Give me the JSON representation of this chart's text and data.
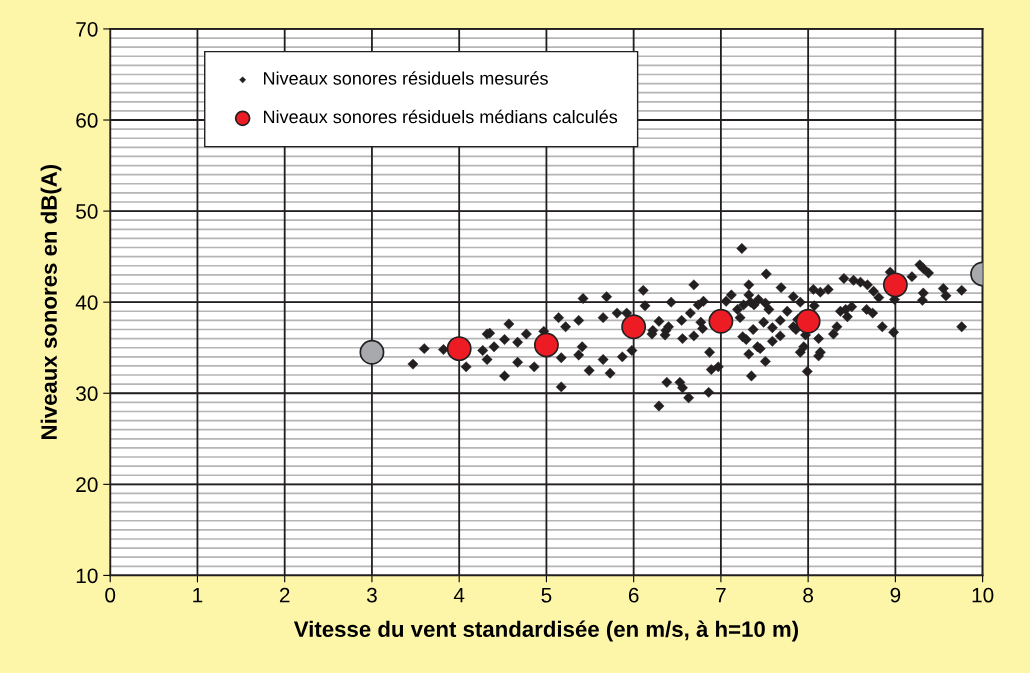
{
  "chart_data": {
    "type": "scatter",
    "xlabel": "Vitesse du vent standardisée (en m/s, à h=10 m)",
    "ylabel": "Niveaux sonores en dB(A)",
    "xlim": [
      0,
      10
    ],
    "ylim": [
      10,
      70
    ],
    "xticks": [
      0,
      1,
      2,
      3,
      4,
      5,
      6,
      7,
      8,
      9,
      10
    ],
    "yticks": [
      10,
      20,
      30,
      40,
      50,
      60,
      70
    ],
    "grid": true,
    "legend": "top left",
    "series": [
      {
        "name": "Niveaux sonores résiduels mesurés",
        "color": "#231f20",
        "marker": "diamond",
        "x": [
          3.47,
          3.6,
          3.82,
          4.08,
          4.27,
          4.32,
          4.35,
          4.4,
          4.32,
          4.52,
          4.52,
          4.57,
          4.67,
          4.67,
          4.86,
          4.77,
          4.97,
          5.14,
          5.22,
          5.17,
          5.17,
          5.37,
          5.42,
          5.37,
          5.41,
          5.49,
          5.69,
          5.65,
          5.73,
          5.65,
          5.81,
          5.92,
          6.11,
          6.13,
          5.87,
          5.98,
          6.29,
          6.37,
          6.43,
          6.22,
          6.29,
          6.38,
          6.53,
          6.56,
          6.63,
          6.86,
          6.4,
          6.21,
          6.36,
          6.69,
          6.55,
          6.65,
          6.56,
          6.69,
          6.77,
          6.79,
          6.74,
          6.8,
          6.87,
          6.89,
          6.97,
          7.06,
          7.12,
          7.24,
          7.19,
          7.22,
          7.26,
          7.32,
          7.34,
          7.38,
          7.43,
          7.51,
          7.55,
          7.32,
          7.52,
          7.25,
          7.29,
          7.37,
          7.32,
          7.42,
          7.45,
          7.35,
          7.51,
          7.49,
          7.59,
          7.59,
          7.68,
          7.68,
          7.76,
          7.69,
          7.83,
          7.91,
          7.83,
          7.88,
          7.86,
          7.91,
          7.95,
          7.99,
          7.97,
          8.12,
          8.14,
          8.12,
          8.06,
          8.14,
          8.23,
          8.07,
          8.29,
          8.33,
          8.37,
          8.43,
          8.45,
          8.5,
          8.41,
          8.52,
          8.6,
          8.68,
          8.75,
          8.81,
          8.67,
          8.74,
          8.85,
          8.98,
          8.94,
          8.99,
          9.19,
          9.28,
          9.32,
          9.38,
          9.32,
          9.31,
          9.55,
          9.58,
          9.76,
          9.76
        ],
        "values": [
          33.2,
          34.9,
          34.8,
          32.9,
          34.7,
          36.5,
          36.6,
          35.1,
          33.7,
          31.9,
          35.9,
          37.6,
          35.6,
          33.4,
          32.9,
          36.5,
          36.8,
          38.3,
          37.3,
          33.9,
          30.7,
          38.0,
          40.4,
          34.2,
          35.1,
          32.5,
          40.6,
          38.3,
          32.2,
          33.7,
          38.8,
          38.8,
          41.3,
          39.6,
          34.0,
          34.7,
          37.9,
          36.9,
          40.0,
          36.9,
          28.6,
          31.2,
          31.2,
          30.6,
          29.5,
          30.1,
          37.3,
          36.5,
          36.4,
          41.9,
          38.0,
          38.8,
          36.0,
          36.3,
          37.8,
          37.1,
          39.7,
          40.1,
          34.5,
          32.6,
          32.9,
          40.1,
          40.8,
          45.9,
          39.2,
          38.3,
          39.7,
          40.8,
          40.0,
          39.7,
          40.3,
          39.9,
          39.2,
          41.9,
          43.1,
          36.2,
          35.9,
          37.0,
          34.3,
          35.1,
          34.9,
          31.9,
          33.5,
          37.8,
          37.2,
          35.7,
          36.3,
          38.0,
          39.0,
          41.6,
          40.6,
          40.0,
          37.3,
          38.1,
          37.0,
          34.5,
          35.1,
          32.4,
          36.4,
          36.0,
          34.5,
          34.1,
          41.4,
          41.1,
          41.4,
          39.6,
          36.5,
          37.3,
          39.0,
          39.2,
          38.4,
          39.5,
          42.6,
          42.4,
          42.2,
          41.9,
          41.2,
          40.5,
          39.2,
          38.8,
          37.3,
          36.7,
          43.3,
          40.3,
          42.8,
          44.1,
          43.7,
          43.2,
          41.0,
          40.2,
          41.5,
          40.7,
          41.3,
          37.3
        ]
      },
      {
        "name": "Niveaux sonores résiduels médians calculés",
        "color": "#ed1c24",
        "marker": "circle",
        "x": [
          4,
          5,
          6,
          7,
          8,
          9
        ],
        "values": [
          34.9,
          35.3,
          37.3,
          37.9,
          37.9,
          41.9
        ]
      },
      {
        "color": "#a7a9ac",
        "marker": "circle",
        "x": [
          3,
          10
        ],
        "values": [
          34.5,
          43.1
        ]
      }
    ]
  }
}
